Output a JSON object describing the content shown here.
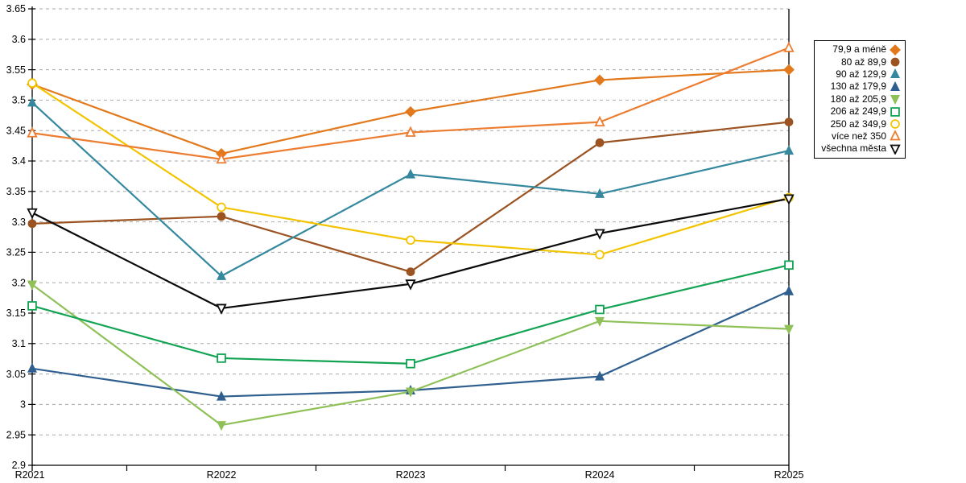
{
  "page": {
    "background": "#FFFFFF"
  },
  "chart_data": {
    "type": "line",
    "title": "",
    "xlabel": "",
    "ylabel": "",
    "categories": [
      "R2021",
      "R2022",
      "R2023",
      "R2024",
      "R2025"
    ],
    "y_axis": {
      "min": 2.9,
      "max": 3.65,
      "step": 0.05,
      "tick_labels": [
        "2.9",
        "2.95",
        "3",
        "3.05",
        "3.1",
        "3.15",
        "3.2",
        "3.25",
        "3.3",
        "3.35",
        "3.4",
        "3.45",
        "3.5",
        "3.55",
        "3.6",
        "3.65"
      ]
    },
    "grid": {
      "horizontal": "dashed",
      "color": "#A9A9A9"
    },
    "axis_color": "#000000",
    "legend_position": "right",
    "series": [
      {
        "name": "79,9 a méně",
        "color": "#E2791D",
        "marker": "diamond",
        "marker_fill": "solid",
        "values": [
          3.526,
          3.412,
          3.481,
          3.533,
          3.55
        ]
      },
      {
        "name": "80 až 89,9",
        "color": "#9A5321",
        "marker": "circle",
        "marker_fill": "solid",
        "values": [
          3.297,
          3.309,
          3.218,
          3.43,
          3.464
        ]
      },
      {
        "name": "90 až 129,9",
        "color": "#35889E",
        "marker": "triangle-up",
        "marker_fill": "solid",
        "values": [
          3.496,
          3.211,
          3.378,
          3.346,
          3.417
        ]
      },
      {
        "name": "130 až 179,9",
        "color": "#2F5F8F",
        "marker": "triangle-up",
        "marker_fill": "solid",
        "values": [
          3.059,
          3.013,
          3.023,
          3.046,
          3.186
        ]
      },
      {
        "name": "180 až 205,9",
        "color": "#8FC158",
        "marker": "triangle-down",
        "marker_fill": "solid",
        "values": [
          3.197,
          2.966,
          3.021,
          3.137,
          3.124
        ]
      },
      {
        "name": "206 až 249,9",
        "color": "#12A452",
        "marker": "square",
        "marker_fill": "open",
        "values": [
          3.162,
          3.076,
          3.067,
          3.156,
          3.229
        ]
      },
      {
        "name": "250 až 349,9",
        "color": "#F2C400",
        "marker": "circle",
        "marker_fill": "open",
        "values": [
          3.528,
          3.324,
          3.27,
          3.246,
          3.34
        ]
      },
      {
        "name": "více než 350",
        "color": "#ED7D31",
        "marker": "triangle-up",
        "marker_fill": "open",
        "values": [
          3.446,
          3.403,
          3.447,
          3.464,
          3.586
        ]
      },
      {
        "name": "všechna města",
        "color": "#0A0A0A",
        "marker": "triangle-down",
        "marker_fill": "open",
        "values": [
          3.315,
          3.158,
          3.198,
          3.281,
          3.338
        ]
      }
    ]
  }
}
